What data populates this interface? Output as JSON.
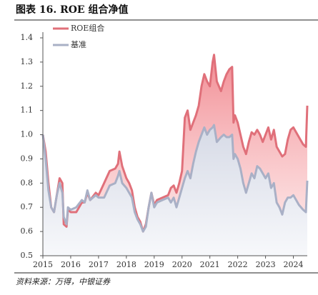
{
  "chart_data": {
    "type": "line",
    "title": "图表 16. ROE 组合净值",
    "source": "资料来源：万得，中银证券",
    "x": [
      2015.0,
      2015.1,
      2015.2,
      2015.3,
      2015.4,
      2015.5,
      2015.6,
      2015.7,
      2015.75,
      2015.85,
      2015.9,
      2016.0,
      2016.2,
      2016.4,
      2016.5,
      2016.6,
      2016.7,
      2016.9,
      2017.0,
      2017.2,
      2017.4,
      2017.6,
      2017.7,
      2017.75,
      2017.85,
      2018.0,
      2018.1,
      2018.2,
      2018.3,
      2018.4,
      2018.5,
      2018.6,
      2018.7,
      2018.8,
      2018.9,
      2019.0,
      2019.1,
      2019.3,
      2019.5,
      2019.6,
      2019.7,
      2019.8,
      2019.9,
      2020.0,
      2020.1,
      2020.2,
      2020.3,
      2020.4,
      2020.5,
      2020.6,
      2020.7,
      2020.8,
      2020.9,
      2021.0,
      2021.1,
      2021.15,
      2021.25,
      2021.4,
      2021.5,
      2021.6,
      2021.7,
      2021.8,
      2021.85,
      2021.9,
      2022.0,
      2022.1,
      2022.2,
      2022.3,
      2022.4,
      2022.5,
      2022.6,
      2022.7,
      2022.8,
      2022.9,
      2023.0,
      2023.1,
      2023.2,
      2023.3,
      2023.4,
      2023.5,
      2023.6,
      2023.7,
      2023.8,
      2023.9,
      2024.0,
      2024.2,
      2024.35,
      2024.45,
      2024.5
    ],
    "series": [
      {
        "name": "ROE组合",
        "color": "#e0707a",
        "values": [
          1.0,
          0.93,
          0.8,
          0.7,
          0.68,
          0.75,
          0.82,
          0.8,
          0.63,
          0.62,
          0.69,
          0.68,
          0.68,
          0.72,
          0.72,
          0.76,
          0.73,
          0.76,
          0.75,
          0.8,
          0.85,
          0.86,
          0.88,
          0.93,
          0.87,
          0.82,
          0.8,
          0.77,
          0.7,
          0.66,
          0.64,
          0.6,
          0.63,
          0.7,
          0.76,
          0.71,
          0.73,
          0.74,
          0.75,
          0.78,
          0.79,
          0.76,
          0.8,
          0.85,
          1.07,
          1.1,
          1.02,
          1.05,
          1.08,
          1.12,
          1.2,
          1.25,
          1.22,
          1.2,
          1.3,
          1.33,
          1.22,
          1.18,
          1.22,
          1.25,
          1.27,
          1.28,
          1.05,
          1.08,
          1.05,
          1.0,
          0.95,
          0.92,
          0.97,
          1.01,
          1.0,
          1.02,
          1.0,
          0.97,
          1.0,
          1.03,
          0.98,
          1.02,
          0.95,
          0.93,
          0.91,
          0.92,
          0.98,
          1.02,
          1.03,
          0.99,
          0.96,
          0.95,
          1.12
        ]
      },
      {
        "name": "基准",
        "color": "#a9b0c6",
        "values": [
          1.0,
          0.9,
          0.77,
          0.7,
          0.68,
          0.75,
          0.8,
          0.76,
          0.66,
          0.63,
          0.7,
          0.69,
          0.7,
          0.73,
          0.72,
          0.77,
          0.73,
          0.75,
          0.74,
          0.74,
          0.79,
          0.8,
          0.83,
          0.85,
          0.8,
          0.78,
          0.76,
          0.74,
          0.68,
          0.65,
          0.63,
          0.6,
          0.62,
          0.7,
          0.76,
          0.7,
          0.72,
          0.73,
          0.74,
          0.72,
          0.74,
          0.7,
          0.74,
          0.78,
          0.82,
          0.85,
          0.82,
          0.88,
          0.93,
          0.97,
          1.0,
          1.03,
          1.0,
          1.02,
          1.03,
          1.04,
          0.97,
          0.99,
          1.0,
          0.99,
          0.99,
          1.0,
          0.9,
          0.92,
          0.9,
          0.86,
          0.8,
          0.76,
          0.8,
          0.84,
          0.82,
          0.87,
          0.86,
          0.84,
          0.82,
          0.84,
          0.78,
          0.8,
          0.72,
          0.7,
          0.67,
          0.72,
          0.74,
          0.74,
          0.75,
          0.71,
          0.69,
          0.68,
          0.81
        ]
      }
    ],
    "xlim": [
      2015,
      2024.5
    ],
    "xticks": [
      2015,
      2016,
      2017,
      2018,
      2019,
      2020,
      2021,
      2022,
      2023,
      2024
    ],
    "ylim": [
      0.5,
      1.4
    ],
    "yticks": [
      {
        "value": 0.5,
        "label": "0.5"
      },
      {
        "value": 0.6,
        "label": "0.6"
      },
      {
        "value": 0.7,
        "label": "0.7"
      },
      {
        "value": 0.8,
        "label": "0.8"
      },
      {
        "value": 0.9,
        "label": "0.9"
      },
      {
        "value": 1.0,
        "label": "1.0"
      },
      {
        "value": 1.1,
        "label": "1.1"
      },
      {
        "value": 1.2,
        "label": "1.2"
      },
      {
        "value": 1.3,
        "label": "1.3"
      },
      {
        "value": 1.4,
        "label": "1.4"
      }
    ],
    "legend": "upper left"
  }
}
